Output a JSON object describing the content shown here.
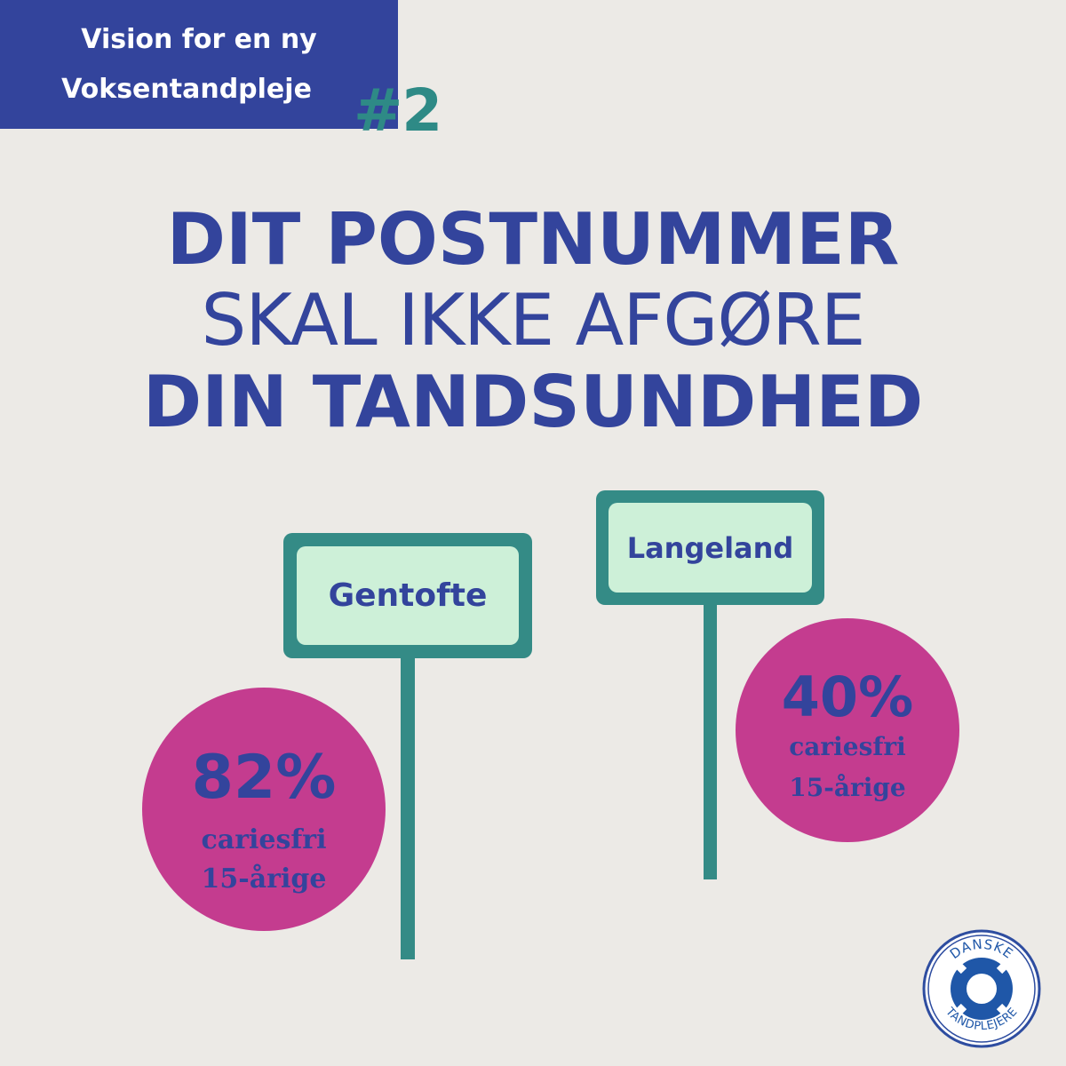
{
  "badge": {
    "line1": "Vision for en ny",
    "line2": "Voksentandpleje",
    "number": "#2"
  },
  "headline": {
    "line1": "DIT POSTNUMMER",
    "line2": "SKAL IKKE AFGØRE",
    "line3": "DIN TANDSUNDHED"
  },
  "signs": [
    {
      "place": "Gentofte",
      "percent": "82%",
      "caption1": "cariesfri",
      "caption2": "15-årige"
    },
    {
      "place": "Langeland",
      "percent": "40%",
      "caption1": "cariesfri",
      "caption2": "15-årige"
    }
  ],
  "logo": {
    "top_text": "DANSKE",
    "bottom_text": "TANDPLEJERE",
    "icon": "lifebuoy-icon"
  },
  "colors": {
    "background": "#ECEAE6",
    "navy": "#33449C",
    "teal": "#348B86",
    "mint": "#CDF0D8",
    "magenta": "#C43C8F",
    "number_teal": "#2E8A86"
  }
}
